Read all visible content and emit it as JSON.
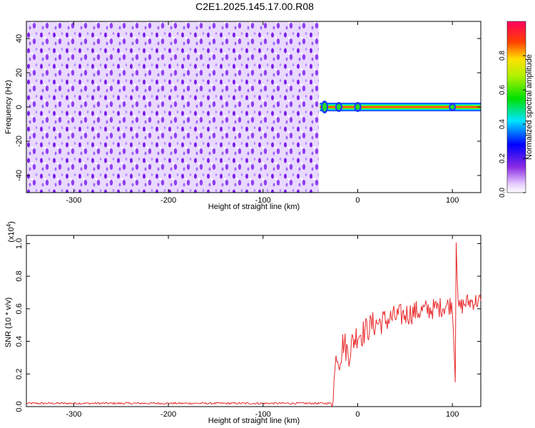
{
  "title": "C2E1.2025.145.17.00.R08",
  "chart_data": [
    {
      "type": "heatmap",
      "title": "C2E1.2025.145.17.00.R08",
      "xlabel": "Height of straight line (km)",
      "ylabel": "Frequency (Hz)",
      "xlim": [
        -350,
        130
      ],
      "ylim": [
        -50,
        50
      ],
      "xticks": [
        -300,
        -200,
        -100,
        0,
        100
      ],
      "yticks": [
        -40,
        -20,
        0,
        20,
        40
      ],
      "noise_region": {
        "x": [
          -350,
          -40
        ],
        "y": [
          -50,
          50
        ],
        "amplitude": "low (0.05-0.25)"
      },
      "signal_region": {
        "x": [
          -40,
          130
        ],
        "center_frequency": 0,
        "peak_amplitude": 0.95
      },
      "colorbar": {
        "label": "Normalized spectral amplitude",
        "range": [
          0.0,
          1.0
        ],
        "ticks": [
          "0.0",
          "0.2",
          "0.4",
          "0.6",
          "0.8"
        ]
      }
    },
    {
      "type": "line",
      "xlabel": "Height of straight line (km)",
      "ylabel": "SNR (10 * v/v)",
      "yscale_label": "(x10",
      "yscale_exp": "4",
      "xlim": [
        -350,
        130
      ],
      "ylim": [
        0,
        1.05
      ],
      "xticks": [
        -300,
        -200,
        -100,
        0,
        100
      ],
      "yticks": [
        "0.0",
        "0.2",
        "0.4",
        "0.6",
        "0.8",
        "1.0"
      ],
      "series": [
        {
          "color": "#e8292b",
          "points": [
            [
              -350,
              0.02
            ],
            [
              -250,
              0.02
            ],
            [
              -150,
              0.02
            ],
            [
              -50,
              0.02
            ],
            [
              -28,
              0.02
            ],
            [
              -25,
              0.15
            ],
            [
              -22,
              0.35
            ],
            [
              -20,
              0.28
            ],
            [
              -15,
              0.4
            ],
            [
              -10,
              0.32
            ],
            [
              -5,
              0.4
            ],
            [
              0,
              0.45
            ],
            [
              5,
              0.45
            ],
            [
              15,
              0.5
            ],
            [
              25,
              0.52
            ],
            [
              40,
              0.55
            ],
            [
              60,
              0.58
            ],
            [
              80,
              0.6
            ],
            [
              95,
              0.62
            ],
            [
              100,
              0.63
            ],
            [
              103,
              0.2
            ],
            [
              104,
              1.05
            ],
            [
              106,
              0.6
            ],
            [
              115,
              0.64
            ],
            [
              130,
              0.65
            ]
          ]
        }
      ]
    }
  ]
}
